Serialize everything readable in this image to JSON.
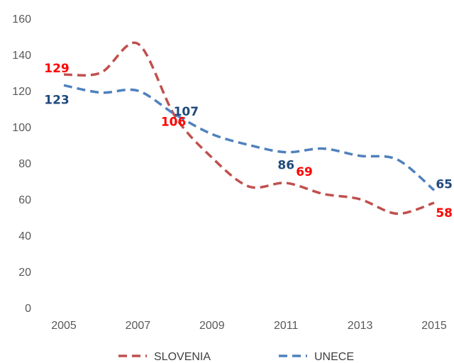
{
  "chart_data": {
    "type": "line",
    "title": "",
    "xlabel": "",
    "ylabel": "",
    "x": [
      2005,
      2006,
      2007,
      2008,
      2009,
      2010,
      2011,
      2012,
      2013,
      2014,
      2015
    ],
    "x_ticks": [
      "2005",
      "2007",
      "2009",
      "2011",
      "2013",
      "2015"
    ],
    "y_ticks": [
      "0",
      "20",
      "40",
      "60",
      "80",
      "100",
      "120",
      "140",
      "160"
    ],
    "xlim": [
      2005,
      2015
    ],
    "ylim": [
      0,
      160
    ],
    "grid": false,
    "legend_position": "bottom",
    "series": [
      {
        "name": "SLOVENIA",
        "color": "#C0504D",
        "line_style": "dashed",
        "values": [
          129,
          130,
          146,
          106,
          83,
          67,
          69,
          63,
          60,
          52,
          58
        ],
        "data_labels": [
          {
            "x": 2005,
            "text": "129"
          },
          {
            "x": 2008,
            "text": "106"
          },
          {
            "x": 2011,
            "text": "69"
          },
          {
            "x": 2015,
            "text": "58"
          }
        ]
      },
      {
        "name": "UNECE",
        "color": "#4F81BD",
        "line_style": "dashed",
        "values": [
          123,
          119,
          120,
          107,
          96,
          90,
          86,
          88,
          84,
          82,
          65
        ],
        "data_labels": [
          {
            "x": 2005,
            "text": "123"
          },
          {
            "x": 2008,
            "text": "107"
          },
          {
            "x": 2011,
            "text": "86"
          },
          {
            "x": 2015,
            "text": "65"
          }
        ]
      }
    ]
  }
}
